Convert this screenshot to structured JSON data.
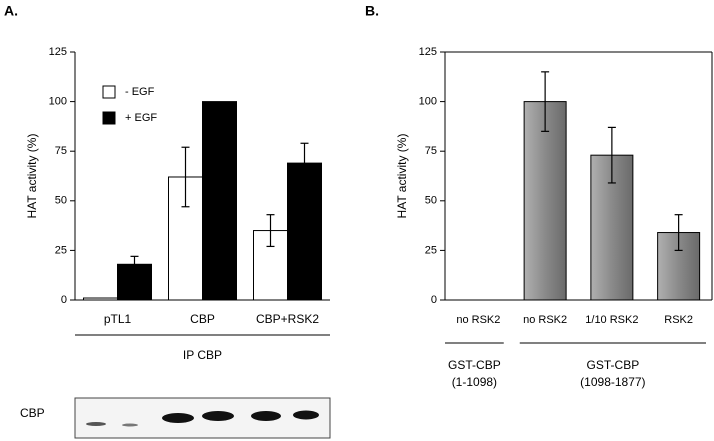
{
  "chart_data": [
    {
      "type": "grouped_bar",
      "panel_label": "A.",
      "y_label": "HAT activity (%)",
      "categories": [
        "pTL1",
        "CBP",
        "CBP+RSK2"
      ],
      "series": [
        {
          "name": "- EGF",
          "color": "#ffffff",
          "values": [
            1,
            62,
            35
          ],
          "errors": [
            null,
            15,
            8
          ]
        },
        {
          "name": "+ EGF",
          "color": "#000000",
          "values": [
            18,
            100,
            69
          ],
          "errors": [
            4,
            null,
            10
          ]
        }
      ],
      "ylim": [
        0,
        125
      ],
      "yticks": [
        0,
        25,
        50,
        75,
        100,
        125
      ],
      "legend": "upper left",
      "group_label": "IP CBP",
      "blot_label": "CBP"
    },
    {
      "type": "bar",
      "panel_label": "B.",
      "y_label": "HAT activity (%)",
      "categories": [
        "no RSK2",
        "no RSK2",
        "1/10 RSK2",
        "RSK2"
      ],
      "values": [
        0,
        100,
        73,
        34
      ],
      "errors": [
        null,
        15,
        14,
        9
      ],
      "color": "#7f7f7f",
      "ylim": [
        0,
        125
      ],
      "yticks": [
        0,
        25,
        50,
        75,
        100,
        125
      ],
      "group_labels": [
        [
          "GST-CBP",
          "(1-1098)"
        ],
        [
          "GST-CBP",
          "(1098-1877)"
        ]
      ]
    }
  ]
}
